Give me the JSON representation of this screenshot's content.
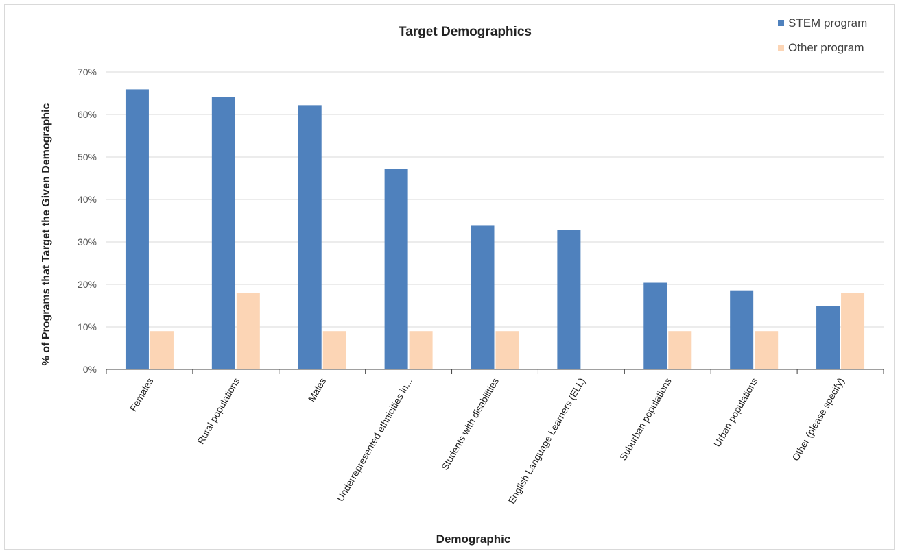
{
  "chart_data": {
    "type": "bar",
    "title": "Target Demographics",
    "xlabel": "Demographic",
    "ylabel": "% of Programs that Target the Given Demographic",
    "categories": [
      "Females",
      "Rural populations",
      "Males",
      "Underrepresented ethnicities in...",
      "Students with disabilities",
      "English Language Learners (ELL)",
      "Suburban populations",
      "Urban populations",
      "Other (please specify)"
    ],
    "series": [
      {
        "name": "STEM program",
        "color": "#4f81bd",
        "values": [
          65.9,
          64.1,
          62.2,
          47.2,
          33.8,
          32.8,
          20.4,
          18.6,
          14.9
        ]
      },
      {
        "name": "Other program",
        "color": "#fcd5b5",
        "values": [
          9.0,
          18.0,
          9.0,
          9.0,
          9.0,
          0,
          9.0,
          9.0,
          18.0
        ]
      }
    ],
    "ylim": [
      0,
      70
    ],
    "yticks": [
      0,
      10,
      20,
      30,
      40,
      50,
      60,
      70
    ],
    "ytick_labels": [
      "0%",
      "10%",
      "20%",
      "30%",
      "40%",
      "50%",
      "60%",
      "70%"
    ],
    "grid": true,
    "legend_position": "top-right"
  }
}
